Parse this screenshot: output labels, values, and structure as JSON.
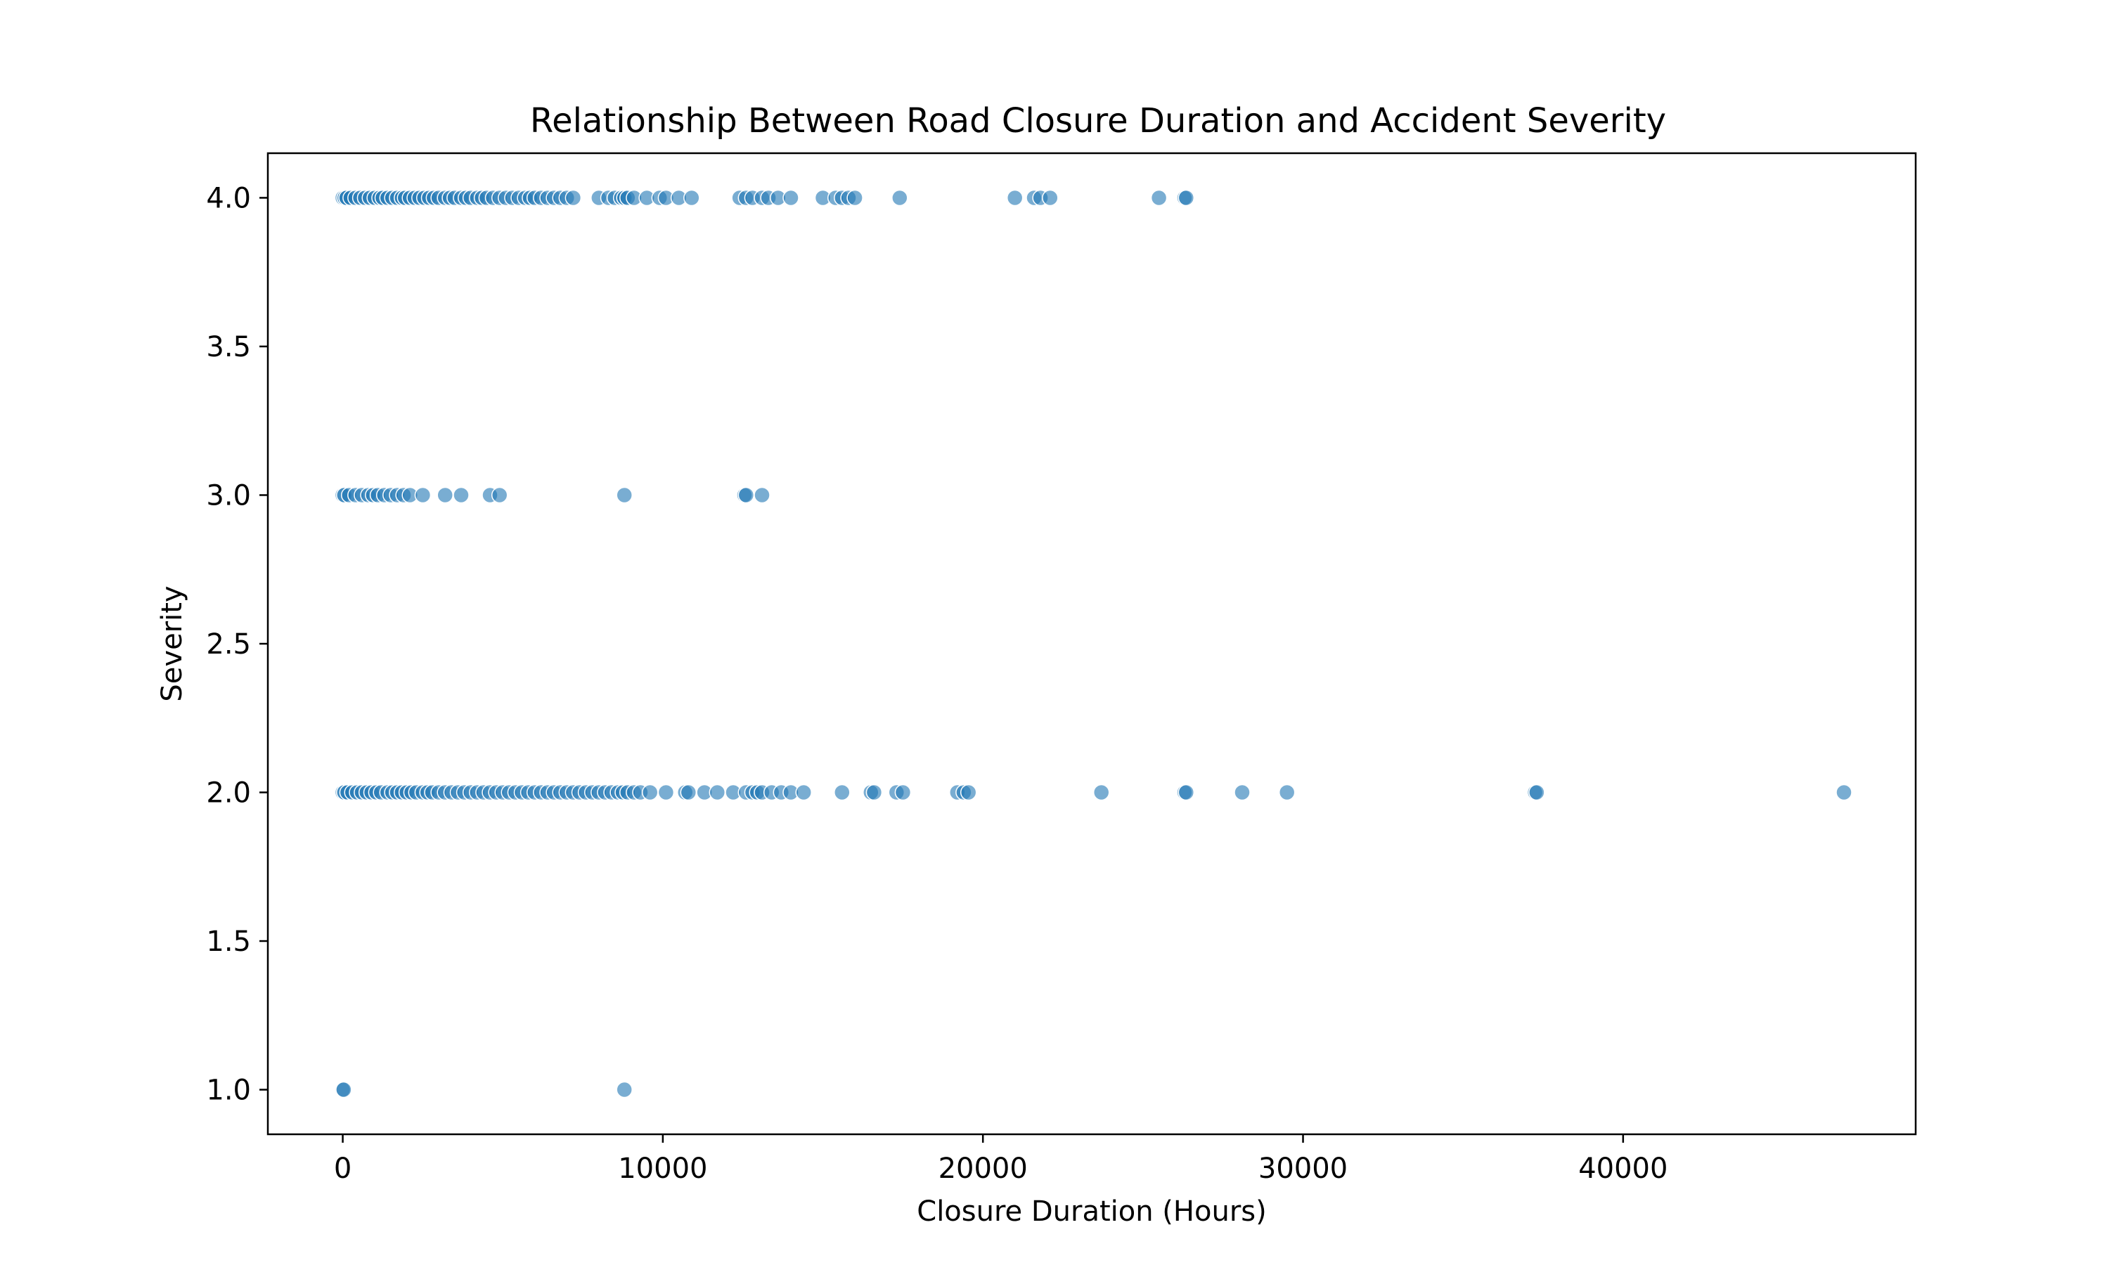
{
  "chart_data": {
    "type": "scatter",
    "title": "Relationship Between Road Closure Duration and Accident Severity",
    "xlabel": "Closure Duration (Hours)",
    "ylabel": "Severity",
    "xlim": [
      -2340,
      49140
    ],
    "ylim": [
      0.85,
      4.15
    ],
    "xticks": [
      0,
      10000,
      20000,
      30000,
      40000
    ],
    "yticks": [
      1.0,
      1.5,
      2.0,
      2.5,
      3.0,
      3.5,
      4.0
    ],
    "grid": false,
    "legend": "none",
    "marker_color": "#1f77b4",
    "marker_alpha": 0.6,
    "points": [
      [
        0,
        4
      ],
      [
        60,
        4
      ],
      [
        120,
        4
      ],
      [
        250,
        4
      ],
      [
        400,
        4
      ],
      [
        550,
        4
      ],
      [
        700,
        4
      ],
      [
        850,
        4
      ],
      [
        1000,
        4
      ],
      [
        1150,
        4
      ],
      [
        1250,
        4
      ],
      [
        1400,
        4
      ],
      [
        1550,
        4
      ],
      [
        1700,
        4
      ],
      [
        1850,
        4
      ],
      [
        1950,
        4
      ],
      [
        2100,
        4
      ],
      [
        2250,
        4
      ],
      [
        2400,
        4
      ],
      [
        2550,
        4
      ],
      [
        2700,
        4
      ],
      [
        2850,
        4
      ],
      [
        3000,
        4
      ],
      [
        3200,
        4
      ],
      [
        3350,
        4
      ],
      [
        3500,
        4
      ],
      [
        3700,
        4
      ],
      [
        3850,
        4
      ],
      [
        4000,
        4
      ],
      [
        4200,
        4
      ],
      [
        4350,
        4
      ],
      [
        4500,
        4
      ],
      [
        4700,
        4
      ],
      [
        4900,
        4
      ],
      [
        5100,
        4
      ],
      [
        5300,
        4
      ],
      [
        5500,
        4
      ],
      [
        5700,
        4
      ],
      [
        5850,
        4
      ],
      [
        6000,
        4
      ],
      [
        6200,
        4
      ],
      [
        6400,
        4
      ],
      [
        6600,
        4
      ],
      [
        6800,
        4
      ],
      [
        7000,
        4
      ],
      [
        7200,
        4
      ],
      [
        8000,
        4
      ],
      [
        8300,
        4
      ],
      [
        8500,
        4
      ],
      [
        8700,
        4
      ],
      [
        8800,
        4
      ],
      [
        8900,
        4
      ],
      [
        9100,
        4
      ],
      [
        9500,
        4
      ],
      [
        9900,
        4
      ],
      [
        10100,
        4
      ],
      [
        10500,
        4
      ],
      [
        10900,
        4
      ],
      [
        12400,
        4
      ],
      [
        12600,
        4
      ],
      [
        12800,
        4
      ],
      [
        13100,
        4
      ],
      [
        13300,
        4
      ],
      [
        13600,
        4
      ],
      [
        14000,
        4
      ],
      [
        15000,
        4
      ],
      [
        15400,
        4
      ],
      [
        15600,
        4
      ],
      [
        15800,
        4
      ],
      [
        16000,
        4
      ],
      [
        17400,
        4
      ],
      [
        21000,
        4
      ],
      [
        21600,
        4
      ],
      [
        21800,
        4
      ],
      [
        22100,
        4
      ],
      [
        25500,
        4
      ],
      [
        26300,
        4
      ],
      [
        26350,
        4
      ],
      [
        0,
        3
      ],
      [
        50,
        3
      ],
      [
        200,
        3
      ],
      [
        400,
        3
      ],
      [
        600,
        3
      ],
      [
        800,
        3
      ],
      [
        950,
        3
      ],
      [
        1100,
        3
      ],
      [
        1300,
        3
      ],
      [
        1500,
        3
      ],
      [
        1700,
        3
      ],
      [
        1900,
        3
      ],
      [
        2100,
        3
      ],
      [
        2500,
        3
      ],
      [
        3200,
        3
      ],
      [
        3700,
        3
      ],
      [
        4600,
        3
      ],
      [
        4900,
        3
      ],
      [
        8800,
        3
      ],
      [
        12550,
        3
      ],
      [
        12600,
        3
      ],
      [
        13100,
        3
      ],
      [
        0,
        2
      ],
      [
        50,
        2
      ],
      [
        150,
        2
      ],
      [
        300,
        2
      ],
      [
        450,
        2
      ],
      [
        600,
        2
      ],
      [
        750,
        2
      ],
      [
        900,
        2
      ],
      [
        1050,
        2
      ],
      [
        1200,
        2
      ],
      [
        1400,
        2
      ],
      [
        1550,
        2
      ],
      [
        1700,
        2
      ],
      [
        1850,
        2
      ],
      [
        2000,
        2
      ],
      [
        2150,
        2
      ],
      [
        2300,
        2
      ],
      [
        2500,
        2
      ],
      [
        2650,
        2
      ],
      [
        2800,
        2
      ],
      [
        3000,
        2
      ],
      [
        3200,
        2
      ],
      [
        3400,
        2
      ],
      [
        3600,
        2
      ],
      [
        3800,
        2
      ],
      [
        4000,
        2
      ],
      [
        4200,
        2
      ],
      [
        4400,
        2
      ],
      [
        4600,
        2
      ],
      [
        4800,
        2
      ],
      [
        5000,
        2
      ],
      [
        5200,
        2
      ],
      [
        5400,
        2
      ],
      [
        5600,
        2
      ],
      [
        5800,
        2
      ],
      [
        6000,
        2
      ],
      [
        6200,
        2
      ],
      [
        6400,
        2
      ],
      [
        6600,
        2
      ],
      [
        6800,
        2
      ],
      [
        7000,
        2
      ],
      [
        7200,
        2
      ],
      [
        7400,
        2
      ],
      [
        7600,
        2
      ],
      [
        7800,
        2
      ],
      [
        8000,
        2
      ],
      [
        8200,
        2
      ],
      [
        8400,
        2
      ],
      [
        8600,
        2
      ],
      [
        8750,
        2
      ],
      [
        8900,
        2
      ],
      [
        9100,
        2
      ],
      [
        9300,
        2
      ],
      [
        9600,
        2
      ],
      [
        10100,
        2
      ],
      [
        10700,
        2
      ],
      [
        10800,
        2
      ],
      [
        11300,
        2
      ],
      [
        11700,
        2
      ],
      [
        12200,
        2
      ],
      [
        12600,
        2
      ],
      [
        12800,
        2
      ],
      [
        12950,
        2
      ],
      [
        13100,
        2
      ],
      [
        13400,
        2
      ],
      [
        13700,
        2
      ],
      [
        14000,
        2
      ],
      [
        14400,
        2
      ],
      [
        15600,
        2
      ],
      [
        16500,
        2
      ],
      [
        16600,
        2
      ],
      [
        17300,
        2
      ],
      [
        17500,
        2
      ],
      [
        19200,
        2
      ],
      [
        19400,
        2
      ],
      [
        19550,
        2
      ],
      [
        23700,
        2
      ],
      [
        26300,
        2
      ],
      [
        26350,
        2
      ],
      [
        28100,
        2
      ],
      [
        29500,
        2
      ],
      [
        37250,
        2
      ],
      [
        37300,
        2
      ],
      [
        46900,
        2
      ],
      [
        0,
        1
      ],
      [
        30,
        1
      ],
      [
        8800,
        1
      ]
    ]
  }
}
